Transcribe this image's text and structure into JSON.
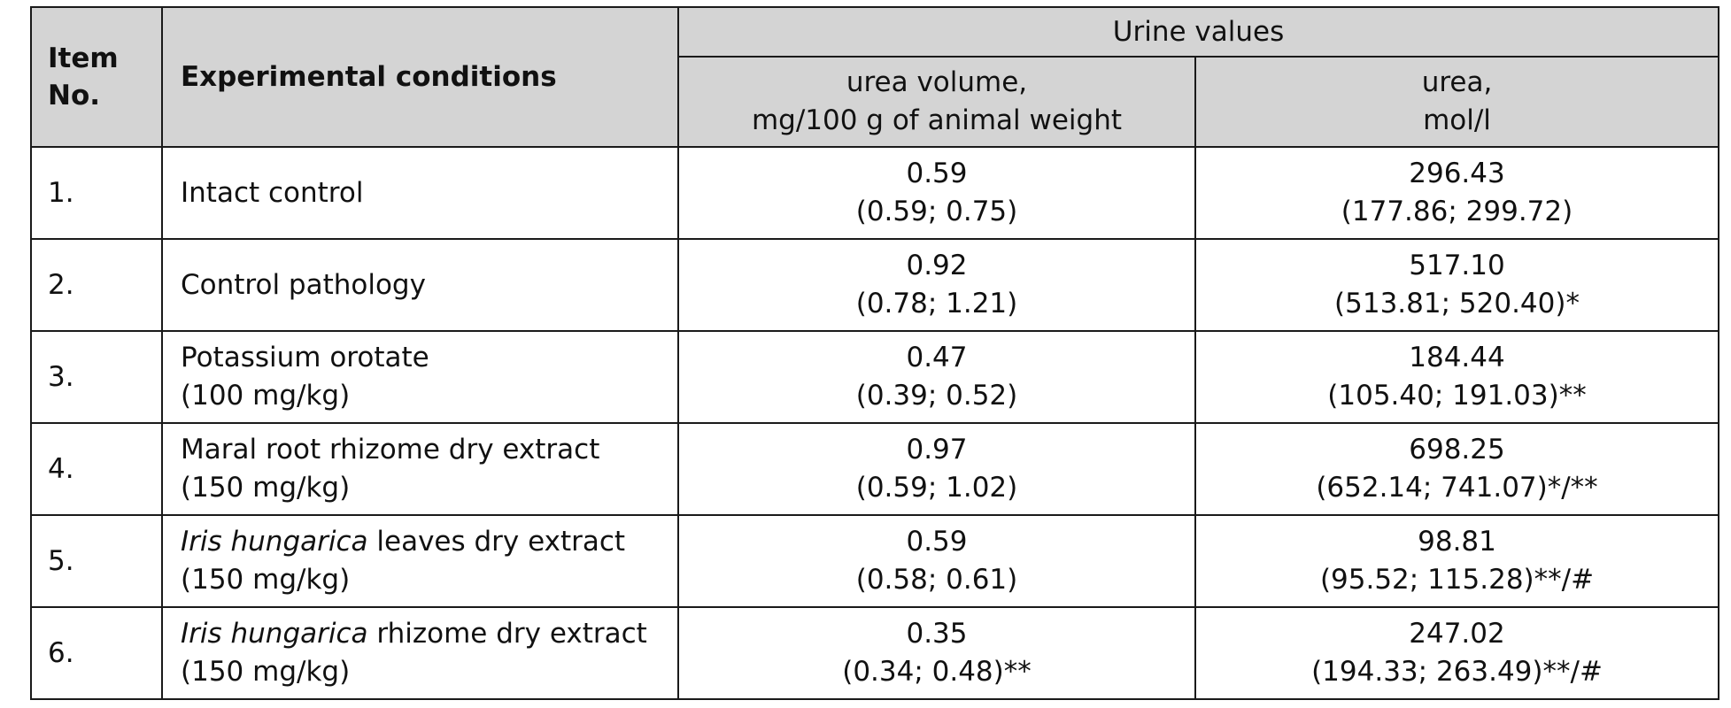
{
  "table": {
    "header": {
      "item_no": [
        "Item",
        "No."
      ],
      "experimental_conditions": "Experimental conditions",
      "group": "Urine values",
      "urea_volume": [
        "urea volume,",
        "mg/100 g of animal weight"
      ],
      "urea": [
        "urea,",
        "mol/l"
      ]
    },
    "rows": [
      {
        "item": "1.",
        "cond_italic": "",
        "cond_rest": "Intact control",
        "cond_line2": "",
        "volume": [
          "0.59",
          "(0.59; 0.75)"
        ],
        "urea": [
          "296.43",
          "(177.86; 299.72)"
        ]
      },
      {
        "item": "2.",
        "cond_italic": "",
        "cond_rest": "Control pathology",
        "cond_line2": "",
        "volume": [
          "0.92",
          "(0.78; 1.21)"
        ],
        "urea": [
          "517.10",
          "(513.81; 520.40)*"
        ]
      },
      {
        "item": "3.",
        "cond_italic": "",
        "cond_rest": "Potassium orotate",
        "cond_line2": "(100 mg/kg)",
        "volume": [
          "0.47",
          "(0.39; 0.52)"
        ],
        "urea": [
          "184.44",
          "(105.40; 191.03)**"
        ]
      },
      {
        "item": "4.",
        "cond_italic": "",
        "cond_rest": "Maral root rhizome dry extract",
        "cond_line2": "(150 mg/kg)",
        "volume": [
          "0.97",
          "(0.59; 1.02)"
        ],
        "urea": [
          "698.25",
          "(652.14; 741.07)*/**"
        ]
      },
      {
        "item": "5.",
        "cond_italic": "Iris hungarica",
        "cond_rest": " leaves dry extract",
        "cond_line2": "(150 mg/kg)",
        "volume": [
          "0.59",
          "(0.58; 0.61)"
        ],
        "urea": [
          "98.81",
          "(95.52; 115.28)**/#"
        ]
      },
      {
        "item": "6.",
        "cond_italic": "Iris hungarica",
        "cond_rest": " rhizome dry extract",
        "cond_line2": "(150 mg/kg)",
        "volume": [
          "0.35",
          "(0.34; 0.48)**"
        ],
        "urea": [
          "247.02",
          "(194.33; 263.49)**/#"
        ]
      }
    ]
  }
}
